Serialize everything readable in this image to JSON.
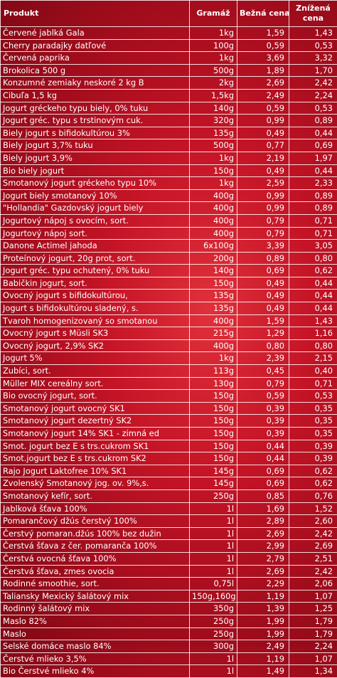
{
  "headers": {
    "product": "Produkt",
    "weight": "Gramáž",
    "regular_price": "Bežná cena",
    "discounted_price": "Znížená cena"
  },
  "rows": [
    [
      "Červené jablká Gala",
      "1kg",
      "1,59",
      "1,43"
    ],
    [
      "Cherry paradajky datľové",
      "100g",
      "0,59",
      "0,53"
    ],
    [
      "Červená paprika",
      "1kg",
      "3,69",
      "3,32"
    ],
    [
      "Brokolica 500 g",
      "500g",
      "1,89",
      "1,70"
    ],
    [
      "Konzumné zemiaky neskoré 2 kg B",
      "2kg",
      "2,69",
      "2,42"
    ],
    [
      "Cibuľa 1,5 kg",
      "1,5kg",
      "2,49",
      "2,24"
    ],
    [
      "Jogurt gréckeho typu biely, 0% tuku",
      "140g",
      "0,59",
      "0,53"
    ],
    [
      "Jogurt gréc. typu s trstinovým cuk.",
      "320g",
      "0,99",
      "0,89"
    ],
    [
      "Biely jogurt s bifidokultúrou 3%",
      "135g",
      "0,49",
      "0,44"
    ],
    [
      "Biely jogurt 3,7% tuku",
      "500g",
      "0,77",
      "0,69"
    ],
    [
      "Biely jogurt 3,9%",
      "1kg",
      "2,19",
      "1,97"
    ],
    [
      "Bio biely jogurt",
      "150g",
      "0,49",
      "0,44"
    ],
    [
      "Smotanový jogurt gréckeho typu 10%",
      "1kg",
      "2,59",
      "2,33"
    ],
    [
      "Jogurt biely smotanový 10%",
      "400g",
      "0,99",
      "0,89"
    ],
    [
      "\"Hollandia\" Gazdovský jogurt biely",
      "400g",
      "0,99",
      "0,89"
    ],
    [
      "Jogurtový nápoj s ovocím, sort.",
      "400g",
      "0,79",
      "0,71"
    ],
    [
      "Jogurtový nápoj sort.",
      "400g",
      "0,79",
      "0,71"
    ],
    [
      "Danone Actimel jahoda",
      "6x100g",
      "3,39",
      "3,05"
    ],
    [
      "Proteínový jogurt, 20g prot, sort.",
      "200g",
      "0,89",
      "0,80"
    ],
    [
      "Jogurt gréc. typu ochutený, 0% tuku",
      "140g",
      "0,69",
      "0,62"
    ],
    [
      "Babičkin jogurt, sort.",
      "150g",
      "0,49",
      "0,44"
    ],
    [
      "Ovocný jogurt s bifidokultúrou,",
      "135g",
      "0,49",
      "0,44"
    ],
    [
      "Jogurt s bifidokultúrou sladený, s.",
      "135g",
      "0,49",
      "0,44"
    ],
    [
      "Tvaroh homogenizovaný so smotanou",
      "400g",
      "1,59",
      "1,43"
    ],
    [
      "Ovocný jogurt s Müsli SK3",
      "215g",
      "1,29",
      "1,16"
    ],
    [
      "Ovocný jogurt, 2,9% SK2",
      "400g",
      "0,80",
      "0,80"
    ],
    [
      "Jogurt 5%",
      "1kg",
      "2,39",
      "2,15"
    ],
    [
      "Zubíci, sort.",
      "113g",
      "0,45",
      "0,40"
    ],
    [
      "Müller MIX cereálny sort.",
      "130g",
      "0,79",
      "0,71"
    ],
    [
      "Bio ovocný jogurt, sort.",
      "150g",
      "0,59",
      "0,53"
    ],
    [
      "Smotanový jogurt ovocný SK1",
      "150g",
      "0,39",
      "0,35"
    ],
    [
      "Smotanový jogurt dezertný SK2",
      "150g",
      "0,39",
      "0,35"
    ],
    [
      "Smotanový jogurt 14% SK1 - zimná ed",
      "150g",
      "0,39",
      "0,35"
    ],
    [
      "Smot. jogurt bez E s trs.cukrom SK1",
      "150g",
      "0,44",
      "0,39"
    ],
    [
      "Smot.jogurt bez E s trs.cukrom SK2",
      "150g",
      "0,44",
      "0,39"
    ],
    [
      "Rajo Jogurt Laktofree 10% SK1",
      "145g",
      "0,69",
      "0,62"
    ],
    [
      "Zvolenský Smotanový jog. ov. 9%,s.",
      "145g",
      "0,69",
      "0,62"
    ],
    [
      "Smotanový kefír, sort.",
      "250g",
      "0,85",
      "0,76"
    ],
    [
      "Jablková šťava 100%",
      "1l",
      "1,69",
      "1,52"
    ],
    [
      "Pomarančový džús čerstvý 100%",
      "1l",
      "2,89",
      "2,60"
    ],
    [
      "Čerstvý pomaran.džús 100% bez dužin",
      "1l",
      "2,69",
      "2,42"
    ],
    [
      "Čerstvá šťava z čer. pomaranča 100%",
      "1l",
      "2,99",
      "2,69"
    ],
    [
      "Čerstvá ovocná šťava 100%",
      "1l",
      "2,79",
      "2,51"
    ],
    [
      "Čerstvá šťava, zmes ovocia",
      "1l",
      "2,69",
      "2,42"
    ],
    [
      "Rodinné smoothie, sort.",
      "0,75l",
      "2,29",
      "2,06"
    ],
    [
      "Taliansky Mexický šalátový mix",
      "150g,160g",
      "1,19",
      "1,07"
    ],
    [
      "Rodinný šalátový mix",
      "350g",
      "1,39",
      "1,25"
    ],
    [
      "Maslo 82%",
      "250g",
      "1,99",
      "1,79"
    ],
    [
      "Maslo",
      "250g",
      "1,99",
      "1,79"
    ],
    [
      "Selské domáce maslo 84%",
      "300g",
      "2,49",
      "2,24"
    ],
    [
      "Čerstvé mlieko 3,5%",
      "1l",
      "1,19",
      "1,07"
    ],
    [
      "Bio Čerstvé mlieko 4%",
      "1l",
      "1,49",
      "1,34"
    ]
  ]
}
